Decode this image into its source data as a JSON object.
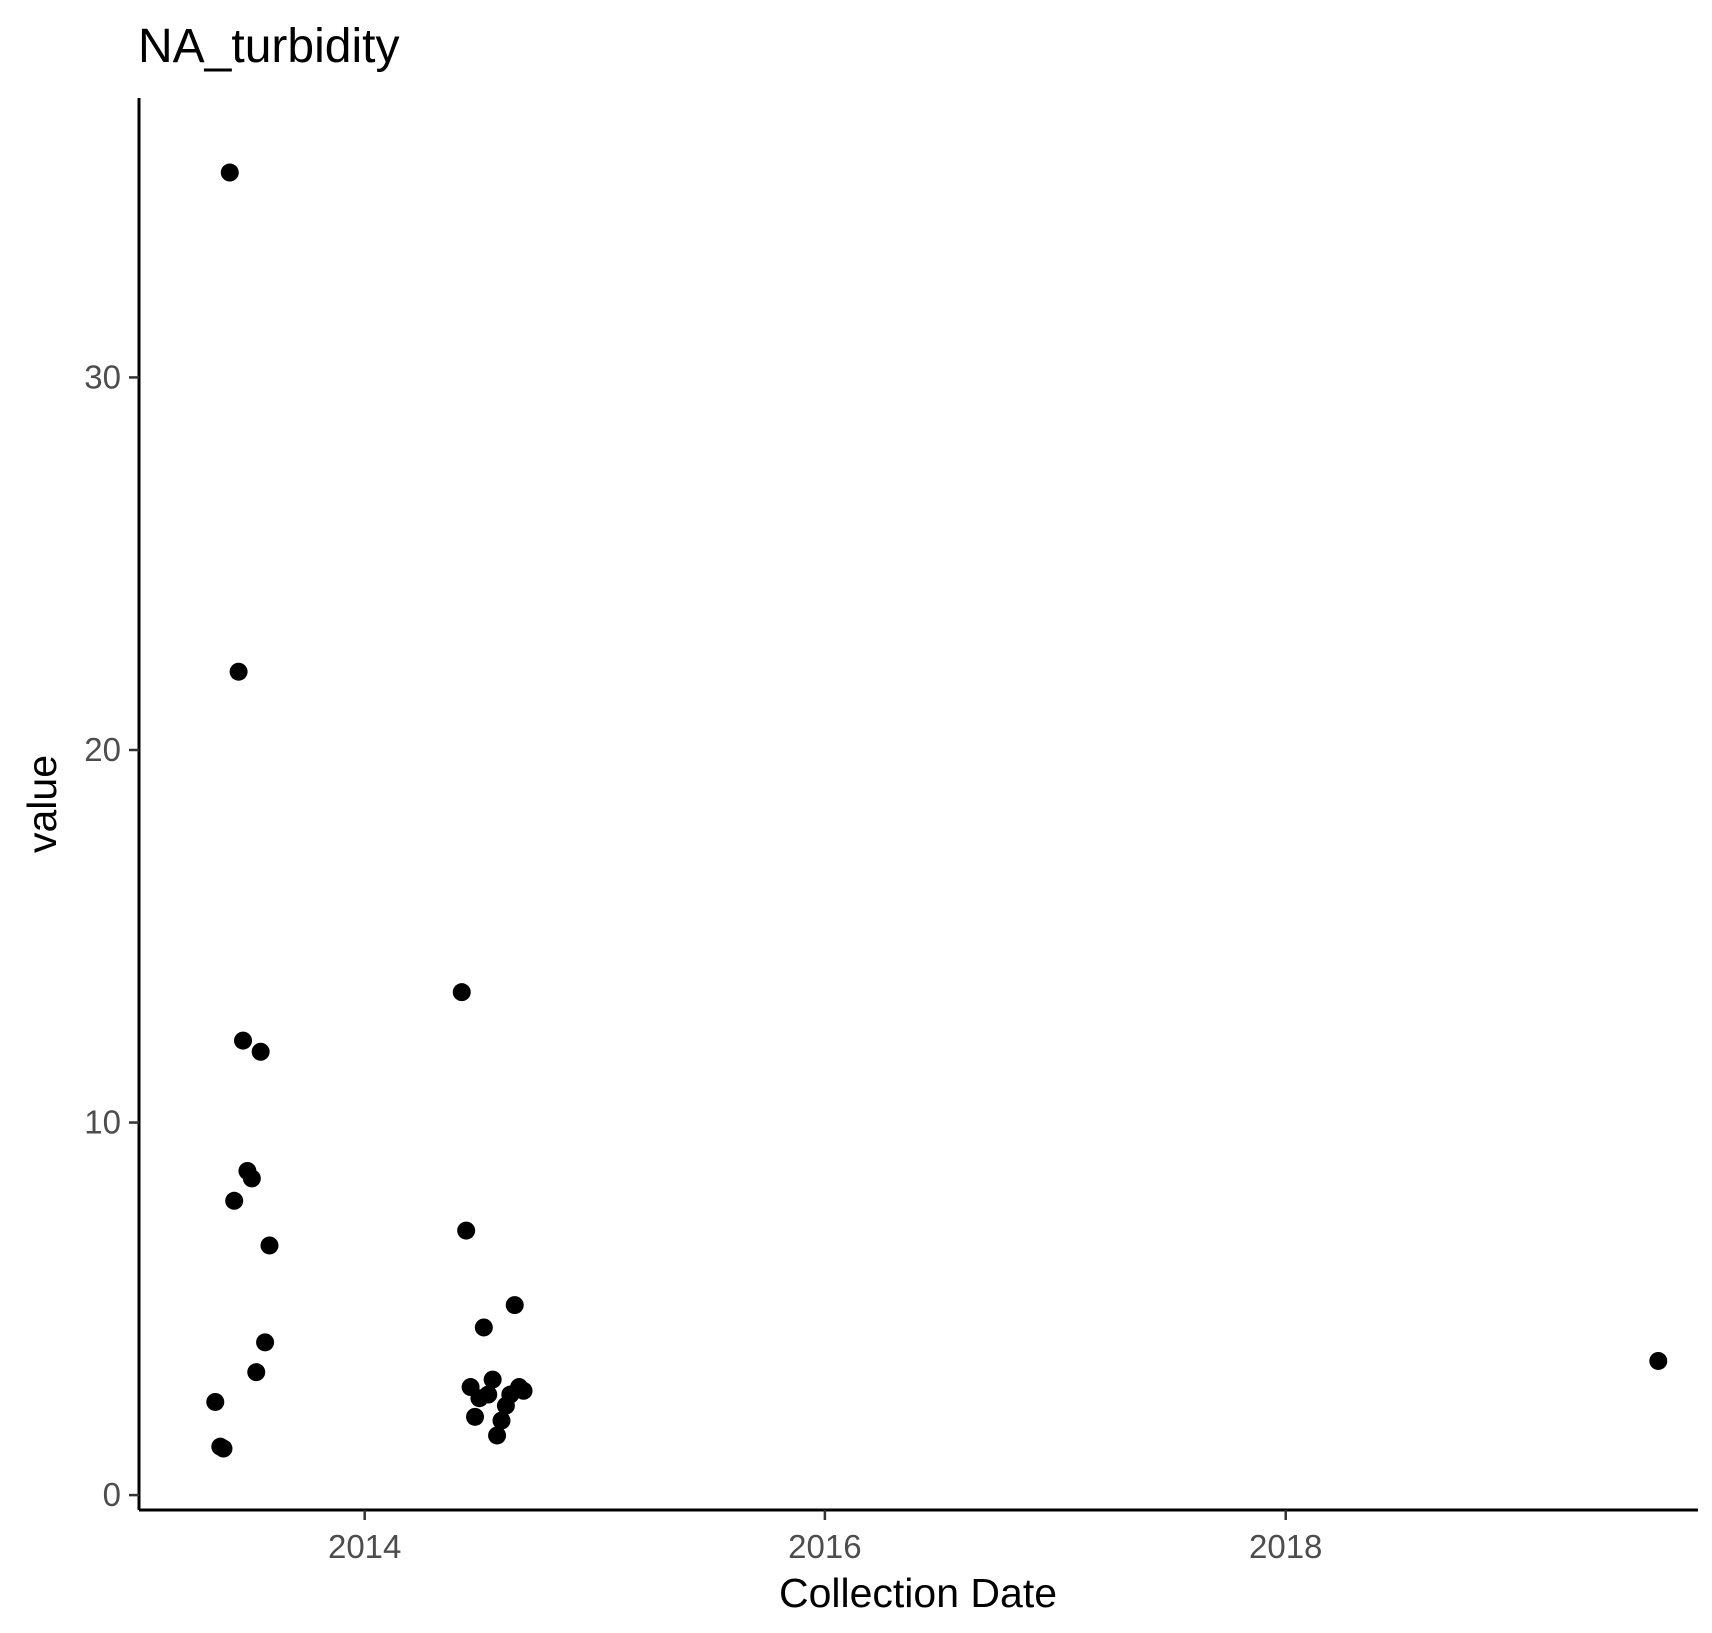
{
  "chart_data": {
    "type": "scatter",
    "title": "NA_turbidity",
    "xlabel": "Collection Date",
    "ylabel": "value",
    "x_is_date": true,
    "xlim": [
      "2013-01-08",
      "2019-10-17"
    ],
    "ylim": [
      -0.4,
      37.5
    ],
    "x_ticks": [
      {
        "value": "2014-01-01",
        "label": "2014"
      },
      {
        "value": "2016-01-01",
        "label": "2016"
      },
      {
        "value": "2018-01-01",
        "label": "2018"
      }
    ],
    "y_ticks": [
      {
        "value": 0,
        "label": "0"
      },
      {
        "value": 10,
        "label": "10"
      },
      {
        "value": 20,
        "label": "20"
      },
      {
        "value": 30,
        "label": "30"
      }
    ],
    "grid": false,
    "legend": "none",
    "point_color": "#000000",
    "points": [
      {
        "x": "2013-05-09",
        "y": 2.5
      },
      {
        "x": "2013-05-17",
        "y": 1.3
      },
      {
        "x": "2013-05-22",
        "y": 1.25
      },
      {
        "x": "2013-06-01",
        "y": 35.5
      },
      {
        "x": "2013-06-08",
        "y": 7.9
      },
      {
        "x": "2013-06-15",
        "y": 22.1
      },
      {
        "x": "2013-06-22",
        "y": 12.2
      },
      {
        "x": "2013-06-29",
        "y": 8.7
      },
      {
        "x": "2013-07-06",
        "y": 8.5
      },
      {
        "x": "2013-07-13",
        "y": 3.3
      },
      {
        "x": "2013-07-20",
        "y": 11.9
      },
      {
        "x": "2013-07-27",
        "y": 4.1
      },
      {
        "x": "2013-08-03",
        "y": 6.7
      },
      {
        "x": "2014-06-04",
        "y": 13.5
      },
      {
        "x": "2014-06-11",
        "y": 7.1
      },
      {
        "x": "2014-06-18",
        "y": 2.9
      },
      {
        "x": "2014-06-25",
        "y": 2.1
      },
      {
        "x": "2014-07-02",
        "y": 2.6
      },
      {
        "x": "2014-07-09",
        "y": 4.5
      },
      {
        "x": "2014-07-16",
        "y": 2.7
      },
      {
        "x": "2014-07-23",
        "y": 3.1
      },
      {
        "x": "2014-07-30",
        "y": 1.6
      },
      {
        "x": "2014-08-06",
        "y": 2.0
      },
      {
        "x": "2014-08-13",
        "y": 2.4
      },
      {
        "x": "2014-08-20",
        "y": 2.7
      },
      {
        "x": "2014-08-27",
        "y": 5.1
      },
      {
        "x": "2014-09-03",
        "y": 2.9
      },
      {
        "x": "2014-09-10",
        "y": 2.8
      },
      {
        "x": "2019-08-15",
        "y": 3.6
      }
    ]
  }
}
